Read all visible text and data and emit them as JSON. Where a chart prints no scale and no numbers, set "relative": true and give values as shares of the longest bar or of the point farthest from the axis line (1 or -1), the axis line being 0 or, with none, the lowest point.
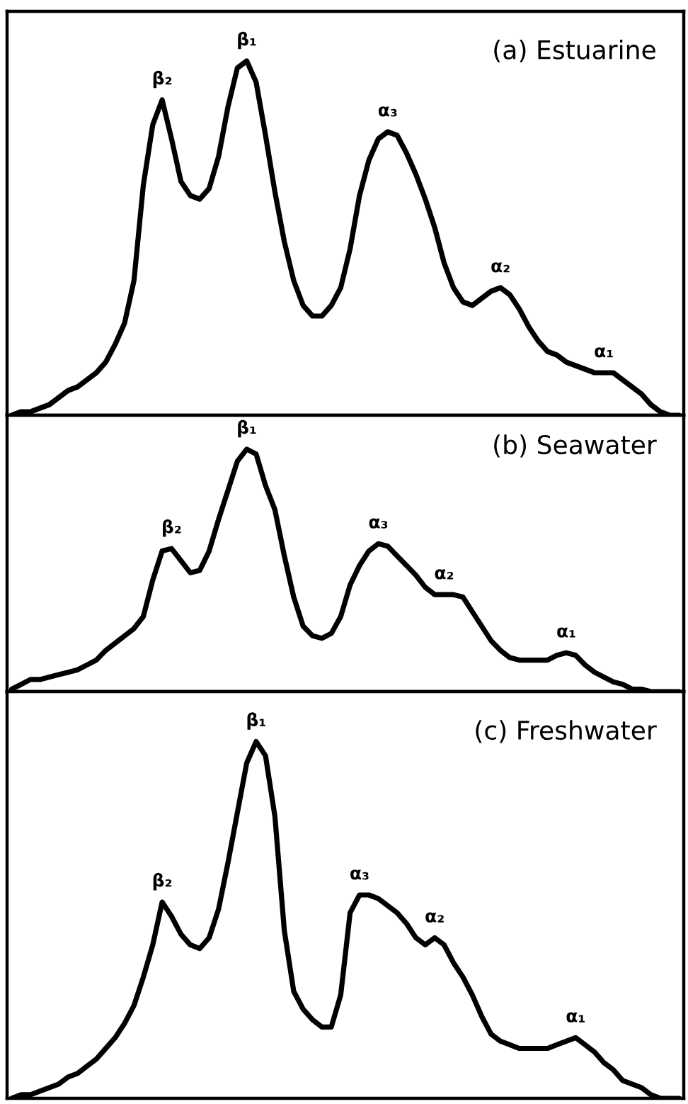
{
  "chart_data": [
    {
      "type": "line",
      "title": "(a) Estuarine",
      "relative": true,
      "grid": false,
      "legend": false,
      "marker": "none",
      "line_style": "solid",
      "categories": [
        null,
        null,
        null,
        null,
        null,
        null,
        null,
        null,
        null,
        null,
        null,
        null,
        null,
        null,
        null,
        null,
        null,
        null,
        null,
        null,
        null,
        null,
        null,
        null,
        null,
        null,
        null,
        null,
        null,
        null,
        null,
        null,
        null,
        null,
        null,
        null,
        null,
        null,
        null,
        null,
        null,
        null,
        null,
        null,
        null,
        null,
        null,
        null,
        null,
        null,
        null,
        null,
        null,
        null,
        null,
        null,
        null,
        null,
        null,
        null,
        null,
        null,
        null,
        null,
        null,
        null,
        null,
        null,
        null,
        null,
        null,
        null
      ],
      "series": [
        {
          "color": "#000000",
          "values": [
            0,
            0.01,
            0.01,
            0.02,
            0.03,
            0.05,
            0.07,
            0.08,
            0.1,
            0.12,
            0.15,
            0.2,
            0.26,
            0.38,
            0.65,
            0.82,
            0.89,
            0.78,
            0.66,
            0.62,
            0.61,
            0.64,
            0.73,
            0.87,
            0.98,
            1.0,
            0.94,
            0.79,
            0.63,
            0.49,
            0.38,
            0.31,
            0.28,
            0.28,
            0.31,
            0.36,
            0.47,
            0.62,
            0.72,
            0.78,
            0.8,
            0.79,
            0.74,
            0.68,
            0.61,
            0.53,
            0.43,
            0.36,
            0.32,
            0.31,
            0.33,
            0.35,
            0.36,
            0.34,
            0.3,
            0.25,
            0.21,
            0.18,
            0.17,
            0.15,
            0.14,
            0.13,
            0.12,
            0.12,
            0.12,
            0.1,
            0.08,
            0.06,
            0.03,
            0.01,
            0,
            0
          ]
        }
      ],
      "annotations": [
        {
          "text": "β₂",
          "y": 0.89
        },
        {
          "text": "β₁",
          "y": 1.0
        },
        {
          "text": "α₃",
          "y": 0.8
        },
        {
          "text": "α₂",
          "y": 0.36
        },
        {
          "text": "α₁",
          "y": 0.12
        }
      ]
    },
    {
      "type": "line",
      "title": "(b) Seawater",
      "relative": true,
      "grid": false,
      "legend": false,
      "marker": "none",
      "line_style": "solid",
      "categories": [
        null,
        null,
        null,
        null,
        null,
        null,
        null,
        null,
        null,
        null,
        null,
        null,
        null,
        null,
        null,
        null,
        null,
        null,
        null,
        null,
        null,
        null,
        null,
        null,
        null,
        null,
        null,
        null,
        null,
        null,
        null,
        null,
        null,
        null,
        null,
        null,
        null,
        null,
        null,
        null,
        null,
        null,
        null,
        null,
        null,
        null,
        null,
        null,
        null,
        null,
        null,
        null,
        null,
        null,
        null,
        null,
        null,
        null,
        null,
        null,
        null,
        null,
        null,
        null,
        null,
        null,
        null,
        null,
        null,
        null,
        null,
        null
      ],
      "series": [
        {
          "color": "#000000",
          "values": [
            0.01,
            0.03,
            0.05,
            0.05,
            0.06,
            0.07,
            0.08,
            0.09,
            0.11,
            0.13,
            0.17,
            0.2,
            0.23,
            0.26,
            0.31,
            0.46,
            0.58,
            0.59,
            0.54,
            0.49,
            0.5,
            0.58,
            0.71,
            0.83,
            0.95,
            1.0,
            0.98,
            0.85,
            0.75,
            0.56,
            0.39,
            0.27,
            0.23,
            0.22,
            0.24,
            0.31,
            0.44,
            0.52,
            0.58,
            0.61,
            0.6,
            0.56,
            0.52,
            0.48,
            0.43,
            0.4,
            0.4,
            0.4,
            0.39,
            0.33,
            0.27,
            0.21,
            0.17,
            0.14,
            0.13,
            0.13,
            0.13,
            0.13,
            0.15,
            0.16,
            0.15,
            0.11,
            0.08,
            0.06,
            0.04,
            0.03,
            0.01,
            0.01,
            0,
            0,
            0,
            0
          ]
        }
      ],
      "annotations": [
        {
          "text": "β₂",
          "y": 0.59
        },
        {
          "text": "β₁",
          "y": 1.0
        },
        {
          "text": "α₃",
          "y": 0.61
        },
        {
          "text": "α₂",
          "y": 0.4
        },
        {
          "text": "α₁",
          "y": 0.16
        }
      ]
    },
    {
      "type": "line",
      "title": "(c) Freshwater",
      "relative": true,
      "grid": false,
      "legend": false,
      "marker": "none",
      "line_style": "solid",
      "categories": [
        null,
        null,
        null,
        null,
        null,
        null,
        null,
        null,
        null,
        null,
        null,
        null,
        null,
        null,
        null,
        null,
        null,
        null,
        null,
        null,
        null,
        null,
        null,
        null,
        null,
        null,
        null,
        null,
        null,
        null,
        null,
        null,
        null,
        null,
        null,
        null,
        null,
        null,
        null,
        null,
        null,
        null,
        null,
        null,
        null,
        null,
        null,
        null,
        null,
        null,
        null,
        null,
        null,
        null,
        null,
        null,
        null,
        null,
        null,
        null,
        null,
        null,
        null,
        null,
        null,
        null,
        null,
        null,
        null,
        null,
        null,
        null
      ],
      "series": [
        {
          "color": "#000000",
          "values": [
            0,
            0.01,
            0.01,
            0.02,
            0.03,
            0.04,
            0.06,
            0.07,
            0.09,
            0.11,
            0.14,
            0.17,
            0.21,
            0.26,
            0.34,
            0.43,
            0.55,
            0.51,
            0.46,
            0.43,
            0.42,
            0.45,
            0.53,
            0.66,
            0.8,
            0.94,
            1.0,
            0.96,
            0.79,
            0.47,
            0.3,
            0.25,
            0.22,
            0.2,
            0.2,
            0.29,
            0.52,
            0.57,
            0.57,
            0.56,
            0.54,
            0.52,
            0.49,
            0.45,
            0.43,
            0.45,
            0.43,
            0.38,
            0.34,
            0.29,
            0.23,
            0.18,
            0.16,
            0.15,
            0.14,
            0.14,
            0.14,
            0.14,
            0.15,
            0.16,
            0.17,
            0.15,
            0.13,
            0.1,
            0.08,
            0.05,
            0.04,
            0.03,
            0.01,
            0.0,
            0,
            0
          ]
        }
      ],
      "annotations": [
        {
          "text": "β₂",
          "y": 0.55
        },
        {
          "text": "β₁",
          "y": 1.0
        },
        {
          "text": "α₃",
          "y": 0.57
        },
        {
          "text": "α₂",
          "y": 0.45
        },
        {
          "text": "α₁",
          "y": 0.17
        }
      ]
    }
  ]
}
